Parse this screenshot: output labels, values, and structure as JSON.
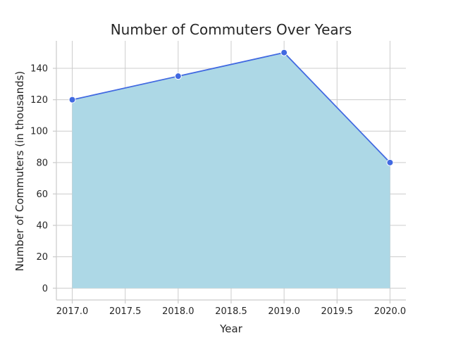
{
  "chart_data": {
    "type": "area",
    "title": "Number of Commuters Over Years",
    "xlabel": "Year",
    "ylabel": "Number of Commuters (in thousands)",
    "x": [
      2017,
      2018,
      2019,
      2020
    ],
    "series": [
      {
        "values": [
          120,
          135,
          150,
          80
        ]
      }
    ],
    "xlim": [
      2016.85,
      2020.15
    ],
    "ylim": [
      -7.5,
      157.5
    ],
    "xticks": [
      2017.0,
      2017.5,
      2018.0,
      2018.5,
      2019.0,
      2019.5,
      2020.0
    ],
    "xtick_labels": [
      "2017.0",
      "2017.5",
      "2018.0",
      "2018.5",
      "2019.0",
      "2019.5",
      "2020.0"
    ],
    "yticks": [
      0,
      20,
      40,
      60,
      80,
      100,
      120,
      140
    ],
    "ytick_labels": [
      "0",
      "20",
      "40",
      "60",
      "80",
      "100",
      "120",
      "140"
    ],
    "grid": true,
    "legend": "none",
    "colors": {
      "fill": "#add8e6",
      "line": "#4169e1",
      "marker": "#4169e1",
      "marker_edge": "#ffffff"
    }
  }
}
